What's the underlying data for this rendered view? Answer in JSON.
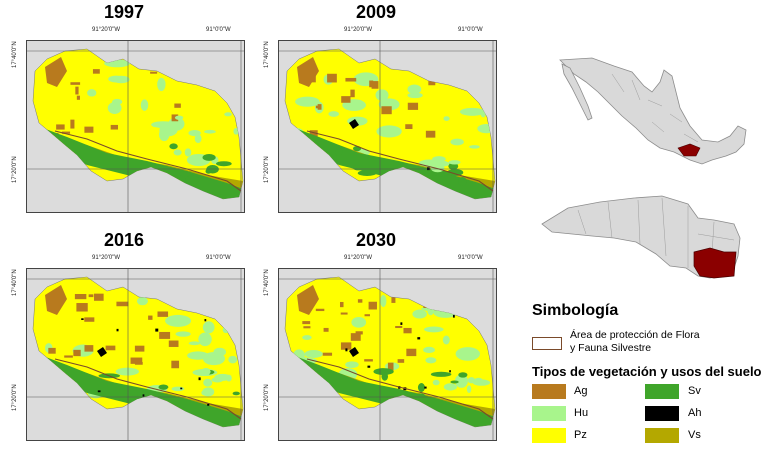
{
  "panels": [
    {
      "year": "1997",
      "coord_lon1": "91°20'0\"W",
      "coord_lon2": "91°0'0\"W",
      "coord_lat1": "17°40'0\"N",
      "coord_lat2": "17°20'0\"N"
    },
    {
      "year": "2009",
      "coord_lon1": "91°20'0\"W",
      "coord_lon2": "91°0'0\"W",
      "coord_lat1": "17°40'0\"N",
      "coord_lat2": "17°20'0\"N"
    },
    {
      "year": "2016",
      "coord_lon1": "91°20'0\"W",
      "coord_lon2": "91°0'0\"W",
      "coord_lat1": "17°40'0\"N",
      "coord_lat2": "17°20'0\"N"
    },
    {
      "year": "2030",
      "coord_lon1": "91°20'0\"W",
      "coord_lon2": "91°0'0\"W",
      "coord_lat1": "17°40'0\"N",
      "coord_lat2": "17°20'0\"N"
    }
  ],
  "legend": {
    "heading": "Simbología",
    "protected_area_line1": "Área de protección de Flora",
    "protected_area_line2": "y Fauna Silvestre",
    "types_heading": "Tipos de vegetación y usos del suelo",
    "classes": [
      {
        "code": "Ag",
        "color": "#b87a1e"
      },
      {
        "code": "Hu",
        "color": "#a8f58c"
      },
      {
        "code": "Pz",
        "color": "#ffff00"
      },
      {
        "code": "Sv",
        "color": "#3fa52a"
      },
      {
        "code": "Ah",
        "color": "#000000"
      },
      {
        "code": "Vs",
        "color": "#b4a800"
      }
    ]
  },
  "colors": {
    "map_background": "#dcdcdc",
    "protected_outline": "#7a4a2a",
    "study_area": "#8b0000",
    "country_fill": "#d9d9d9"
  }
}
